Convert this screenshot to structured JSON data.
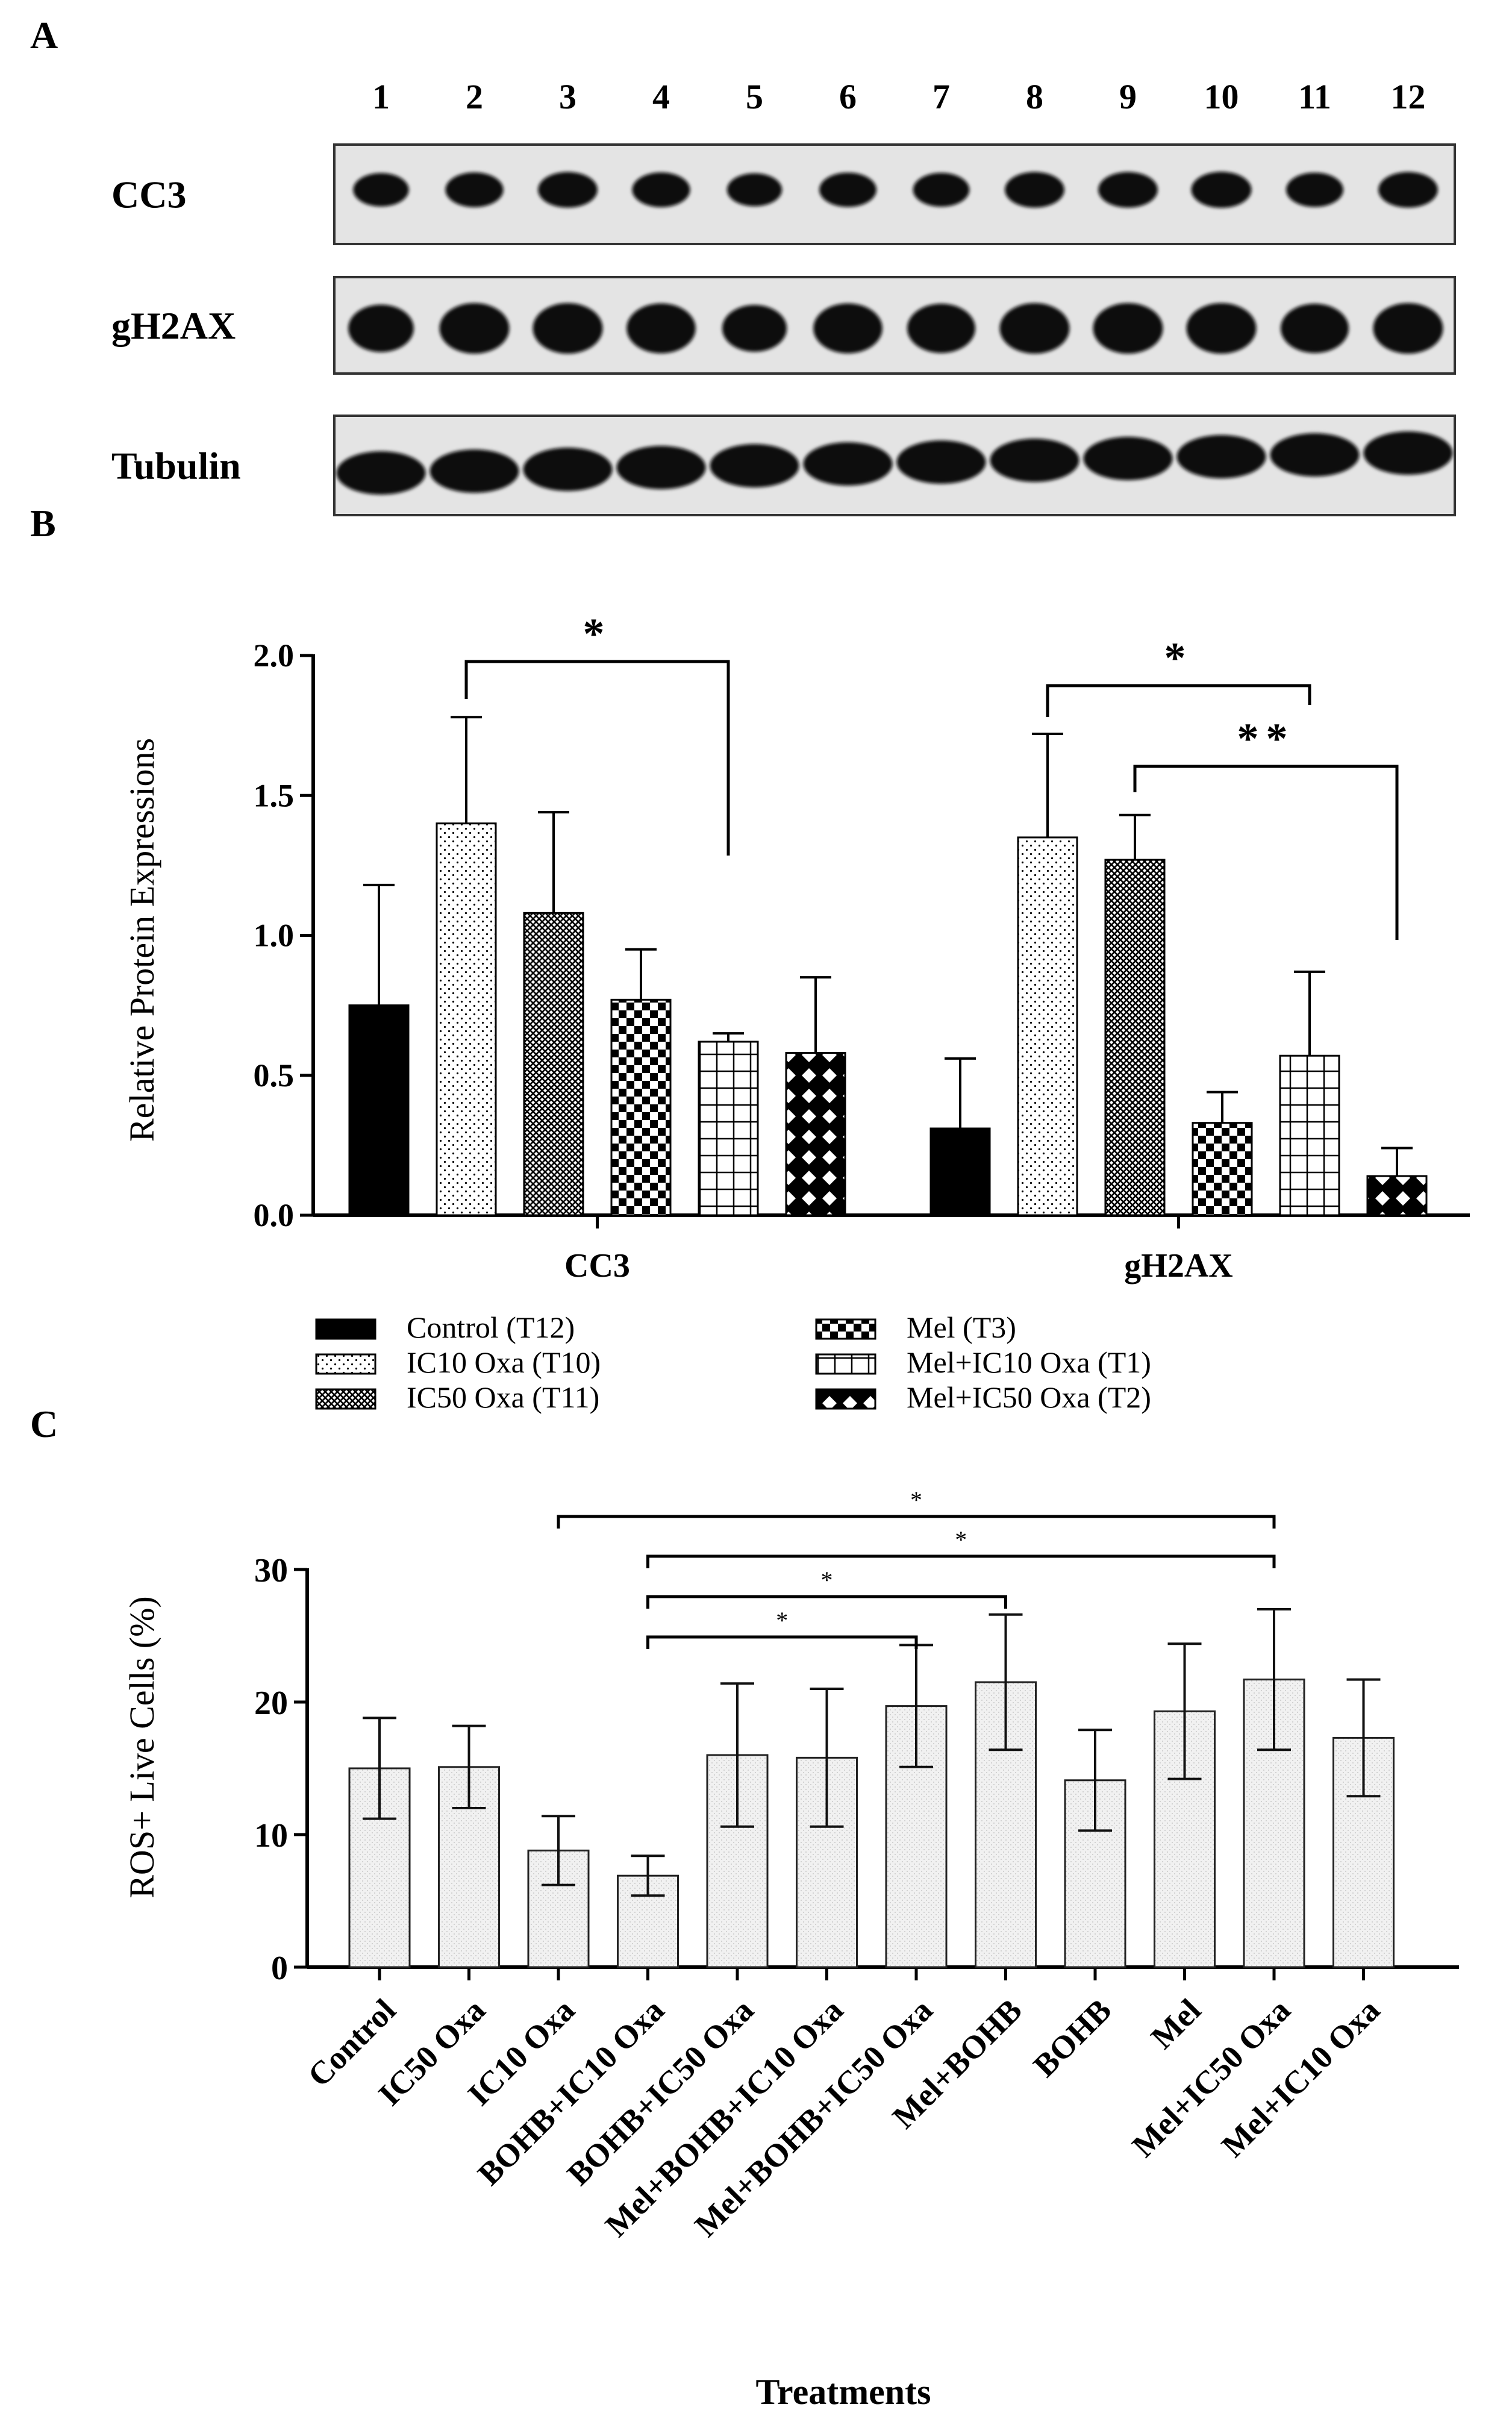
{
  "panel_a": {
    "label": "A",
    "lanes": [
      "1",
      "2",
      "3",
      "4",
      "5",
      "6",
      "7",
      "8",
      "9",
      "10",
      "11",
      "12"
    ],
    "rows": [
      {
        "name": "CC3",
        "intensity": [
          0.7,
          0.85,
          0.95,
          0.85,
          0.65,
          0.8,
          0.75,
          0.95,
          0.95,
          1.0,
          0.8,
          0.95
        ]
      },
      {
        "name": "gH2AX",
        "intensity": [
          0.75,
          1.0,
          1.0,
          0.95,
          0.7,
          0.95,
          0.9,
          1.0,
          1.0,
          1.0,
          0.9,
          1.0
        ]
      },
      {
        "name": "Tubulin",
        "intensity": [
          1.0,
          1.0,
          1.0,
          1.0,
          1.0,
          1.0,
          1.0,
          1.0,
          1.0,
          1.0,
          1.0,
          1.0
        ]
      }
    ]
  },
  "panel_labels": {
    "b": "B",
    "c": "C"
  },
  "chart_data": [
    {
      "type": "bar",
      "title": "",
      "xlabel": "",
      "ylabel": "Relative Protein Expressions",
      "ylim": [
        0,
        2.0
      ],
      "yticks": [
        "0.0",
        "0.5",
        "1.0",
        "1.5",
        "2.0"
      ],
      "categories": [
        "CC3",
        "gH2AX"
      ],
      "series": [
        {
          "name": "Control (T12)",
          "pattern": "solid",
          "values": [
            0.75,
            0.31
          ],
          "errors": [
            0.43,
            0.25
          ]
        },
        {
          "name": "IC10 Oxa (T10)",
          "pattern": "dots",
          "values": [
            1.4,
            1.35
          ],
          "errors": [
            0.38,
            0.37
          ]
        },
        {
          "name": "IC50 Oxa (T11)",
          "pattern": "crosshatch",
          "values": [
            1.08,
            1.27
          ],
          "errors": [
            0.36,
            0.16
          ]
        },
        {
          "name": "Mel (T3)",
          "pattern": "checker",
          "values": [
            0.77,
            0.33
          ],
          "errors": [
            0.18,
            0.11
          ]
        },
        {
          "name": "Mel+IC10 Oxa (T1)",
          "pattern": "grid",
          "values": [
            0.62,
            0.57
          ],
          "errors": [
            0.03,
            0.3
          ]
        },
        {
          "name": "Mel+IC50 Oxa (T2)",
          "pattern": "diamond",
          "values": [
            0.58,
            0.14
          ],
          "errors": [
            0.27,
            0.1
          ]
        }
      ],
      "significance": [
        {
          "group": 0,
          "from": 1,
          "to": 4,
          "label": "*"
        },
        {
          "group": 1,
          "from": 1,
          "to": 4,
          "label": "*"
        },
        {
          "group": 1,
          "from": 2,
          "to": 5,
          "label": "**"
        }
      ]
    },
    {
      "type": "bar",
      "title": "",
      "xlabel": "Treatments",
      "ylabel": "ROS+ Live Cells (%)",
      "ylim": [
        0,
        30
      ],
      "yticks": [
        "0",
        "10",
        "20",
        "30"
      ],
      "categories": [
        "Control",
        "IC50 Oxa",
        "IC10 Oxa",
        "BOHB+IC10 Oxa",
        "BOHB+IC50 Oxa",
        "Mel+BOHB+IC10 Oxa",
        "Mel+BOHB+IC50 Oxa",
        "Mel+BOHB",
        "BOHB",
        "Mel",
        "Mel+IC50 Oxa",
        "Mel+IC10 Oxa"
      ],
      "values": [
        15.0,
        15.1,
        8.8,
        6.9,
        16.0,
        15.8,
        19.7,
        21.5,
        14.1,
        19.3,
        21.7,
        17.3
      ],
      "errors": [
        3.8,
        3.1,
        2.6,
        1.5,
        5.4,
        5.2,
        4.6,
        5.1,
        3.8,
        5.1,
        5.3,
        4.4
      ],
      "significance": [
        {
          "from": 2,
          "to": 10,
          "label": "*"
        },
        {
          "from": 3,
          "to": 10,
          "label": "*"
        },
        {
          "from": 3,
          "to": 7,
          "label": "*"
        },
        {
          "from": 3,
          "to": 6,
          "label": "*"
        }
      ]
    }
  ]
}
